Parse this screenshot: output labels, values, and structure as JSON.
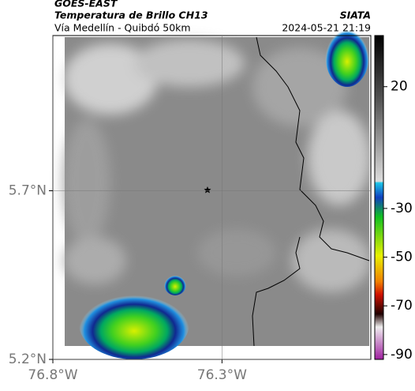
{
  "header": {
    "source": "GOES-EAST",
    "product": "Temperatura de Brillo CH13",
    "region": "Vía Medellín - Quibdó 50km",
    "agency": "SIATA",
    "datetime": "2024-05-21 21:19"
  },
  "map": {
    "xlim": [
      -76.8,
      -75.86
    ],
    "ylim": [
      5.2,
      6.16
    ],
    "xticks": [
      {
        "value": -76.8,
        "label": "76.8°W"
      },
      {
        "value": -76.3,
        "label": "76.3°W"
      }
    ],
    "yticks": [
      {
        "value": 5.7,
        "label": "5.7°N"
      },
      {
        "value": 5.2,
        "label": "5.2°N"
      }
    ],
    "grid": true
  },
  "colorbar": {
    "lim": [
      41,
      -92
    ],
    "ticks": [
      20,
      -30,
      -50,
      -70,
      -90
    ]
  }
}
